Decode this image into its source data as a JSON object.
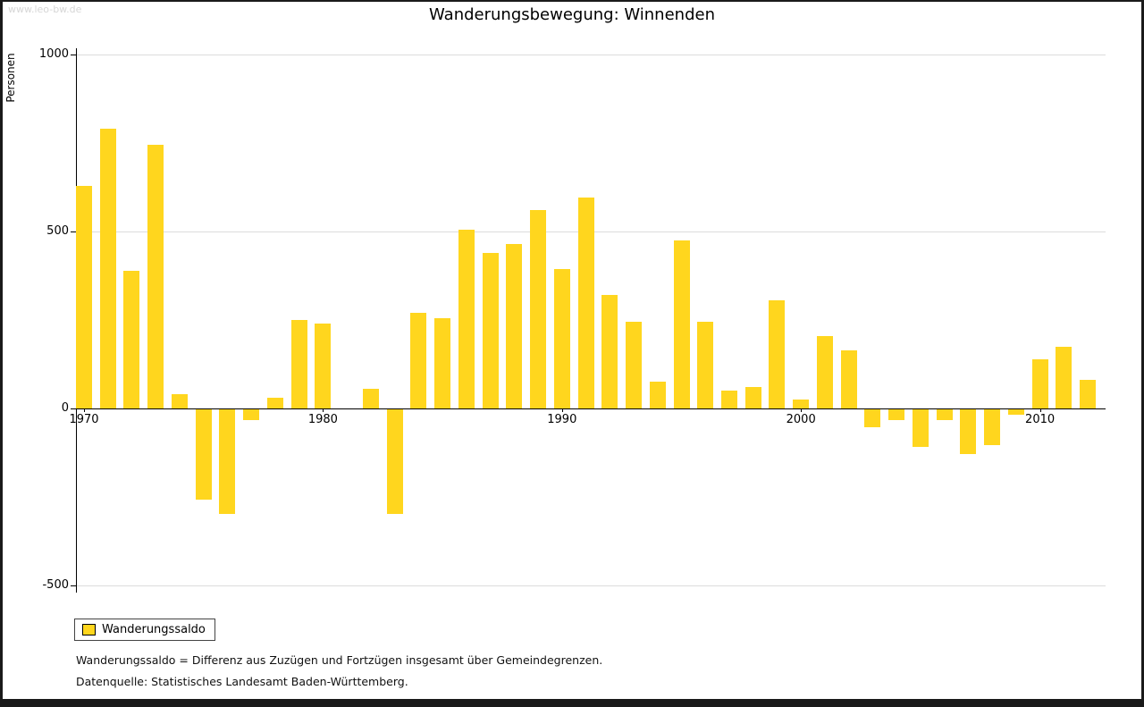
{
  "watermark": "www.leo-bw.de",
  "footnotes": [
    "Wanderungssaldo = Differenz aus Zuzügen und Fortzügen insgesamt über Gemeindegrenzen.",
    "Datenquelle: Statistisches Landesamt Baden-Württemberg."
  ],
  "chart_data": {
    "type": "bar",
    "title": "Wanderungsbewegung: Winnenden",
    "ylabel": "Personen",
    "xlabel": "",
    "legend": "Wanderungssaldo",
    "bar_color": "#FFD61E",
    "grid_color": "#dcdcdc",
    "ylim": [
      -500,
      1000
    ],
    "yticks": [
      1000,
      500,
      0,
      -500
    ],
    "xticks": [
      1970,
      1980,
      1990,
      2000,
      2010
    ],
    "years": [
      1970,
      1971,
      1972,
      1973,
      1974,
      1975,
      1976,
      1977,
      1978,
      1979,
      1980,
      1981,
      1982,
      1983,
      1984,
      1985,
      1986,
      1987,
      1988,
      1989,
      1990,
      1991,
      1992,
      1993,
      1994,
      1995,
      1996,
      1997,
      1998,
      1999,
      2000,
      2001,
      2002,
      2003,
      2004,
      2005,
      2006,
      2007,
      2008,
      2009,
      2010,
      2011,
      2012
    ],
    "values": [
      630,
      790,
      390,
      745,
      40,
      -255,
      -295,
      -30,
      30,
      250,
      240,
      0,
      55,
      -295,
      270,
      255,
      505,
      440,
      465,
      560,
      395,
      595,
      320,
      245,
      75,
      475,
      245,
      50,
      60,
      305,
      25,
      205,
      165,
      -50,
      -30,
      -105,
      -30,
      -125,
      -100,
      -15,
      140,
      175,
      80
    ]
  }
}
